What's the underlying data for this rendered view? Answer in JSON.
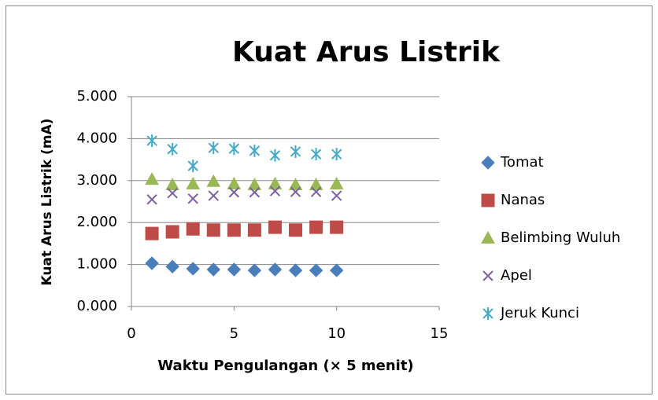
{
  "chart_data": {
    "type": "scatter",
    "title": "Kuat Arus Listrik",
    "x_label": "Waktu Pengulangan (× 5 menit)",
    "y_label": "Kuat Arus Listrik (mA)",
    "x": [
      1,
      2,
      3,
      4,
      5,
      6,
      7,
      8,
      9,
      10
    ],
    "series": [
      {
        "name": "Tomat",
        "color": "#4a7ebb",
        "marker": "diamond",
        "values": [
          1.03,
          0.95,
          0.9,
          0.88,
          0.88,
          0.86,
          0.88,
          0.86,
          0.86,
          0.86
        ]
      },
      {
        "name": "Nanas",
        "color": "#be4b48",
        "marker": "square",
        "values": [
          1.74,
          1.78,
          1.85,
          1.82,
          1.82,
          1.82,
          1.89,
          1.82,
          1.89,
          1.89
        ]
      },
      {
        "name": "Belimbing Wuluh",
        "color": "#98b954",
        "marker": "triangle",
        "values": [
          3.03,
          2.9,
          2.92,
          2.98,
          2.92,
          2.9,
          2.92,
          2.9,
          2.9,
          2.92
        ]
      },
      {
        "name": "Apel",
        "color": "#7d60a0",
        "marker": "x",
        "values": [
          2.55,
          2.7,
          2.57,
          2.64,
          2.72,
          2.72,
          2.75,
          2.73,
          2.73,
          2.64
        ]
      },
      {
        "name": "Jeruk Kunci",
        "color": "#46aac5",
        "marker": "star",
        "values": [
          3.95,
          3.75,
          3.35,
          3.78,
          3.76,
          3.71,
          3.6,
          3.69,
          3.63,
          3.63
        ]
      }
    ],
    "xlim": [
      0,
      15
    ],
    "xticks": [
      0,
      5,
      10,
      15
    ],
    "ylim": [
      0,
      5
    ],
    "yticks": [
      {
        "value": 0,
        "label": "0.000"
      },
      {
        "value": 1,
        "label": "1.000"
      },
      {
        "value": 2,
        "label": "2.000"
      },
      {
        "value": 3,
        "label": "3.000"
      },
      {
        "value": 4,
        "label": "4.000"
      },
      {
        "value": 5,
        "label": "5.000"
      }
    ],
    "grid": true,
    "legend": "right"
  }
}
